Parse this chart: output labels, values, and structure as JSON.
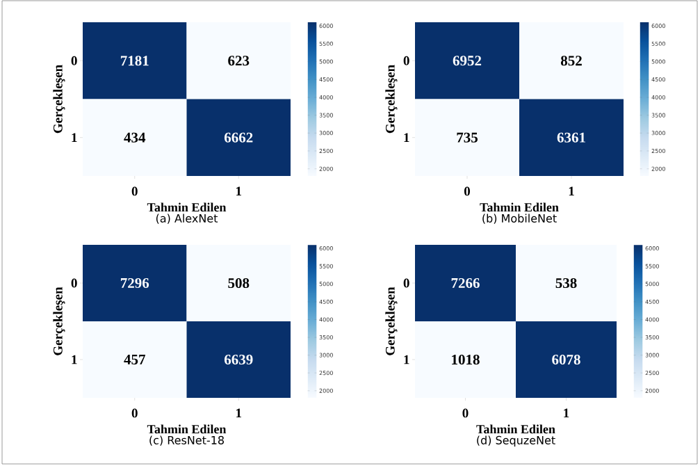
{
  "chart_data": [
    {
      "type": "heatmap",
      "title": "(a) AlexNet",
      "xlabel": "Tahmin Edilen",
      "ylabel": "Gerçekleşen",
      "categories": [
        "0",
        "1"
      ],
      "y_categories": [
        "0",
        "1"
      ],
      "cells": [
        [
          7181,
          623
        ],
        [
          434,
          6662
        ]
      ],
      "data_labels": true,
      "clim": [
        1800,
        6100
      ],
      "cticks": [
        2000,
        2500,
        3000,
        3500,
        4000,
        4500,
        5000,
        5500,
        6000
      ]
    },
    {
      "type": "heatmap",
      "title": "(b) MobileNet",
      "xlabel": "Tahmin Edilen",
      "ylabel": "Gerçekleşen",
      "categories": [
        "0",
        "1"
      ],
      "y_categories": [
        "0",
        "1"
      ],
      "cells": [
        [
          6952,
          852
        ],
        [
          735,
          6361
        ]
      ],
      "data_labels": true,
      "clim": [
        1800,
        6100
      ],
      "cticks": [
        2000,
        2500,
        3000,
        3500,
        4000,
        4500,
        5000,
        5500,
        6000
      ]
    },
    {
      "type": "heatmap",
      "title": "(c) ResNet-18",
      "xlabel": "Tahmin Edilen",
      "ylabel": "Gerçekleşen",
      "categories": [
        "0",
        "1"
      ],
      "y_categories": [
        "0",
        "1"
      ],
      "cells": [
        [
          7296,
          508
        ],
        [
          457,
          6639
        ]
      ],
      "data_labels": true,
      "clim": [
        1800,
        6100
      ],
      "cticks": [
        2000,
        2500,
        3000,
        3500,
        4000,
        4500,
        5000,
        5500,
        6000
      ]
    },
    {
      "type": "heatmap",
      "title": "(d) SequzeNet",
      "xlabel": "Tahmin Edilen",
      "ylabel": "Gerçekleşen",
      "categories": [
        "0",
        "1"
      ],
      "y_categories": [
        "0",
        "1"
      ],
      "cells": [
        [
          7266,
          538
        ],
        [
          1018,
          6078
        ]
      ],
      "data_labels": true,
      "clim": [
        1800,
        6100
      ],
      "cticks": [
        2000,
        2500,
        3000,
        3500,
        4000,
        4500,
        5000,
        5500,
        6000
      ]
    }
  ]
}
